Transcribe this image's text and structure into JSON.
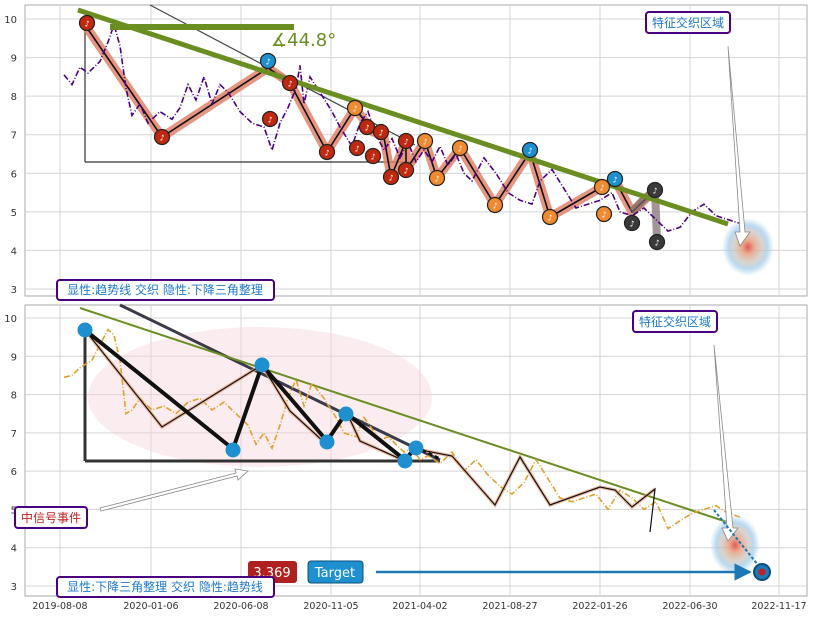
{
  "colors": {
    "panel_border": "#aaaaaa",
    "grid": "#d0d0d0",
    "trend": "#6b8e23",
    "price_top": "#4b0082",
    "price_bottom": "#e0a030",
    "zigzag_top_glow": "#e0836a",
    "node_red": "#c0280f",
    "node_orange": "#f08a30",
    "node_blue": "#1e90d0",
    "node_dark": "#3a3a3a",
    "label_border": "#4b0082",
    "label_text": "#1e78c8",
    "cn_event_text": "#c02020",
    "badge_red": "#b02020",
    "badge_blue": "#1e90d0"
  },
  "chart_data": [
    {
      "type": "line",
      "title": "",
      "ylim": [
        2.8,
        10.3
      ],
      "y_ticks": [
        "3",
        "4",
        "5",
        "6",
        "7",
        "8",
        "9",
        "10"
      ],
      "x_ticks": [
        "2019-08-08",
        "2020-01-06",
        "2020-06-08",
        "2020-11-05",
        "2021-04-02",
        "2021-08-27",
        "2022-01-26",
        "2022-06-30",
        "2022-11-17"
      ],
      "grid": true,
      "angle_label": "∡44.8°",
      "annotation_zone": "特征交织区域",
      "legend_box": "显性:趋势线 交织 隐性:下降三角整理",
      "series": [
        {
          "values": [
            [
              0.1,
              8.55
            ],
            [
              0.3,
              8.3
            ],
            [
              0.5,
              8.75
            ],
            [
              0.7,
              8.6
            ],
            [
              1.0,
              8.9
            ],
            [
              1.2,
              9.4
            ],
            [
              1.35,
              9.85
            ],
            [
              1.5,
              9.3
            ],
            [
              1.65,
              8.2
            ],
            [
              1.8,
              7.5
            ],
            [
              2.0,
              7.8
            ],
            [
              2.2,
              7.3
            ],
            [
              2.5,
              7.6
            ],
            [
              2.8,
              7.4
            ],
            [
              3.0,
              7.7
            ],
            [
              3.2,
              8.3
            ],
            [
              3.4,
              7.9
            ],
            [
              3.6,
              8.5
            ],
            [
              3.8,
              7.8
            ],
            [
              4.0,
              8.3
            ],
            [
              4.2,
              8.1
            ],
            [
              4.5,
              7.6
            ],
            [
              4.8,
              7.3
            ],
            [
              5.1,
              7.2
            ],
            [
              5.3,
              6.6
            ],
            [
              5.5,
              7.3
            ],
            [
              5.7,
              7.7
            ],
            [
              5.9,
              8.2
            ],
            [
              6.0,
              8.8
            ],
            [
              6.1,
              7.8
            ],
            [
              6.25,
              8.5
            ],
            [
              6.5,
              8.1
            ],
            [
              6.8,
              7.6
            ],
            [
              7.0,
              7.2
            ],
            [
              7.3,
              6.7
            ],
            [
              7.5,
              7.3
            ],
            [
              7.7,
              7.6
            ],
            [
              7.9,
              7.0
            ],
            [
              8.1,
              6.6
            ],
            [
              8.3,
              6.9
            ],
            [
              8.5,
              6.4
            ],
            [
              8.7,
              6.8
            ],
            [
              8.9,
              6.3
            ],
            [
              9.1,
              6.6
            ],
            [
              9.3,
              6.3
            ],
            [
              9.5,
              6.7
            ],
            [
              9.7,
              6.2
            ],
            [
              9.9,
              6.5
            ],
            [
              10.1,
              6.0
            ],
            [
              10.3,
              5.8
            ],
            [
              10.6,
              6.4
            ],
            [
              10.9,
              6.0
            ],
            [
              11.2,
              5.5
            ],
            [
              11.5,
              5.3
            ],
            [
              11.8,
              5.2
            ],
            [
              12.0,
              5.8
            ],
            [
              12.3,
              6.1
            ],
            [
              12.6,
              5.6
            ],
            [
              12.9,
              5.1
            ],
            [
              13.2,
              5.2
            ],
            [
              13.5,
              5.3
            ],
            [
              13.8,
              5.5
            ],
            [
              14.0,
              5.0
            ],
            [
              14.3,
              4.9
            ],
            [
              14.6,
              5.1
            ],
            [
              14.9,
              4.8
            ],
            [
              15.2,
              4.5
            ],
            [
              15.5,
              4.6
            ],
            [
              15.8,
              5.0
            ],
            [
              16.1,
              5.2
            ],
            [
              16.4,
              4.9
            ],
            [
              16.7,
              4.8
            ],
            [
              17.0,
              4.7
            ]
          ]
        }
      ]
    },
    {
      "type": "line",
      "title": "",
      "ylim": [
        2.8,
        10.3
      ],
      "y_ticks": [
        "3",
        "4",
        "5",
        "6",
        "7",
        "8",
        "9",
        "10"
      ],
      "x_ticks": [
        "2019-08-08",
        "2020-01-06",
        "2020-06-08",
        "2020-11-05",
        "2021-04-02",
        "2021-08-27",
        "2022-01-26",
        "2022-06-30",
        "2022-11-17"
      ],
      "grid": true,
      "annotation_zone": "特征交织区域",
      "event_label": "中信号事件",
      "legend_box": "显性:下降三角整理 交织 隐性:趋势线",
      "price_badge": "3.369",
      "target_badge": "Target",
      "series": [
        {
          "values": [
            [
              0.1,
              8.45
            ],
            [
              0.3,
              8.5
            ],
            [
              0.5,
              8.7
            ],
            [
              0.8,
              8.9
            ],
            [
              1.0,
              9.3
            ],
            [
              1.2,
              9.7
            ],
            [
              1.35,
              9.55
            ],
            [
              1.5,
              8.9
            ],
            [
              1.65,
              7.5
            ],
            [
              1.8,
              7.6
            ],
            [
              2.0,
              7.9
            ],
            [
              2.3,
              7.6
            ],
            [
              2.6,
              7.7
            ],
            [
              2.9,
              7.5
            ],
            [
              3.2,
              7.8
            ],
            [
              3.5,
              7.9
            ],
            [
              3.8,
              7.6
            ],
            [
              4.1,
              7.8
            ],
            [
              4.4,
              7.5
            ],
            [
              4.7,
              7.2
            ],
            [
              4.9,
              6.7
            ],
            [
              5.1,
              7.0
            ],
            [
              5.3,
              6.6
            ],
            [
              5.5,
              7.2
            ],
            [
              5.7,
              7.9
            ],
            [
              5.9,
              8.4
            ],
            [
              6.1,
              7.7
            ],
            [
              6.3,
              8.3
            ],
            [
              6.6,
              7.9
            ],
            [
              6.9,
              7.4
            ],
            [
              7.1,
              7.0
            ],
            [
              7.4,
              6.9
            ],
            [
              7.6,
              7.4
            ],
            [
              7.8,
              7.1
            ],
            [
              8.0,
              6.8
            ],
            [
              8.2,
              6.9
            ],
            [
              8.4,
              6.7
            ],
            [
              8.6,
              6.5
            ],
            [
              8.8,
              6.6
            ],
            [
              9.0,
              6.3
            ],
            [
              9.2,
              6.4
            ],
            [
              9.5,
              6.2
            ],
            [
              9.8,
              6.5
            ],
            [
              10.1,
              6.0
            ],
            [
              10.4,
              6.3
            ],
            [
              10.7,
              5.9
            ],
            [
              11.0,
              5.6
            ],
            [
              11.3,
              5.4
            ],
            [
              11.6,
              5.7
            ],
            [
              11.9,
              6.3
            ],
            [
              12.2,
              5.8
            ],
            [
              12.5,
              5.3
            ],
            [
              12.8,
              5.2
            ],
            [
              13.1,
              5.3
            ],
            [
              13.4,
              5.4
            ],
            [
              13.7,
              5.0
            ],
            [
              14.0,
              5.5
            ],
            [
              14.3,
              5.3
            ],
            [
              14.6,
              5.0
            ],
            [
              14.9,
              5.2
            ],
            [
              15.2,
              4.5
            ],
            [
              15.5,
              4.7
            ],
            [
              15.8,
              4.9
            ],
            [
              16.1,
              5.0
            ],
            [
              16.4,
              5.1
            ],
            [
              16.7,
              4.9
            ],
            [
              17.0,
              4.8
            ]
          ]
        }
      ]
    }
  ]
}
